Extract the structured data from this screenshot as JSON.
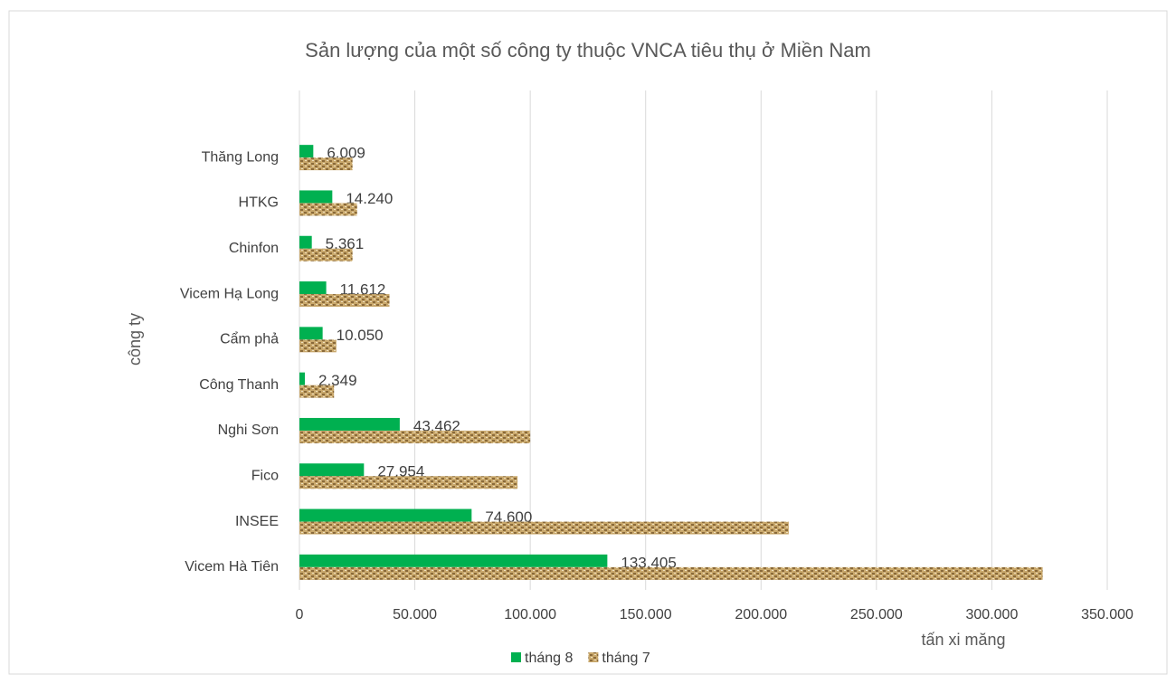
{
  "chart_data": {
    "type": "barh",
    "title": "Sản lượng của một số công ty thuộc VNCA tiêu thụ ở Miền Nam",
    "xlabel": "tấn xi măng",
    "ylabel": "công ty",
    "categories": [
      "Thăng Long",
      "HTKG",
      "Chinfon",
      "Vicem Hạ Long",
      "Cẩm phả",
      "Công Thanh",
      "Nghi Sơn",
      "Fico",
      "INSEE",
      "Vicem Hà Tiên"
    ],
    "series": [
      {
        "name": "tháng 8",
        "color": "#00b050",
        "values": [
          6009,
          14240,
          5361,
          11612,
          10050,
          2349,
          43462,
          27954,
          74600,
          133405
        ],
        "value_labels": [
          "6.009",
          "14.240",
          "5.361",
          "11.612",
          "10.050",
          "2.349",
          "43.462",
          "27.954",
          "74.600",
          "133.405"
        ]
      },
      {
        "name": "tháng 7",
        "color": "#c9a86c",
        "pattern": "brick",
        "values": [
          23000,
          25000,
          23000,
          39000,
          16000,
          15000,
          100000,
          94500,
          212000,
          322000
        ]
      }
    ],
    "xlim": [
      0,
      350000
    ],
    "xticks": [
      0,
      {
        "value": 50000,
        "label": "50.000"
      },
      {
        "value": 100000,
        "label": "100.000"
      },
      {
        "value": 150000,
        "label": "150.000"
      },
      {
        "value": 200000,
        "label": "200.000"
      },
      {
        "value": 250000,
        "label": "250.000"
      },
      {
        "value": 300000,
        "label": "300.000"
      },
      {
        "value": 350000,
        "label": "350.000"
      }
    ],
    "grid": true,
    "legend": "bottom"
  }
}
